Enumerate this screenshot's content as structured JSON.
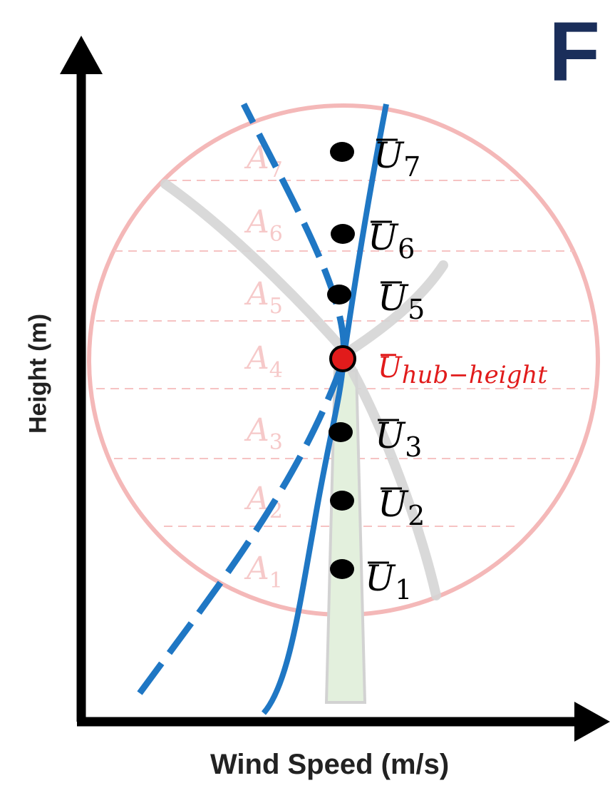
{
  "panel_label": "F",
  "axes": {
    "y_label": "Height (m)",
    "x_label": "Wind Speed (m/s)"
  },
  "colors": {
    "profile": "#1f77c4",
    "rotor_circle": "#f4b8b8",
    "segment_label": "#f6c9c9",
    "hub_point": "#e11b1b",
    "point": "#000000",
    "axis": "#000000",
    "panel_label": "#1a2e5a"
  },
  "segments": [
    {
      "base": "A",
      "sub": "1"
    },
    {
      "base": "A",
      "sub": "2"
    },
    {
      "base": "A",
      "sub": "3"
    },
    {
      "base": "A",
      "sub": "4"
    },
    {
      "base": "A",
      "sub": "5"
    },
    {
      "base": "A",
      "sub": "6"
    },
    {
      "base": "A",
      "sub": "7"
    }
  ],
  "points": [
    {
      "base": "U",
      "sub": "1",
      "hub": false
    },
    {
      "base": "U",
      "sub": "2",
      "hub": false
    },
    {
      "base": "U",
      "sub": "3",
      "hub": false
    },
    {
      "base": "U",
      "sub": "hub−height",
      "hub": true
    },
    {
      "base": "U",
      "sub": "5",
      "hub": false
    },
    {
      "base": "U",
      "sub": "6",
      "hub": false
    },
    {
      "base": "U",
      "sub": "7",
      "hub": false
    }
  ]
}
